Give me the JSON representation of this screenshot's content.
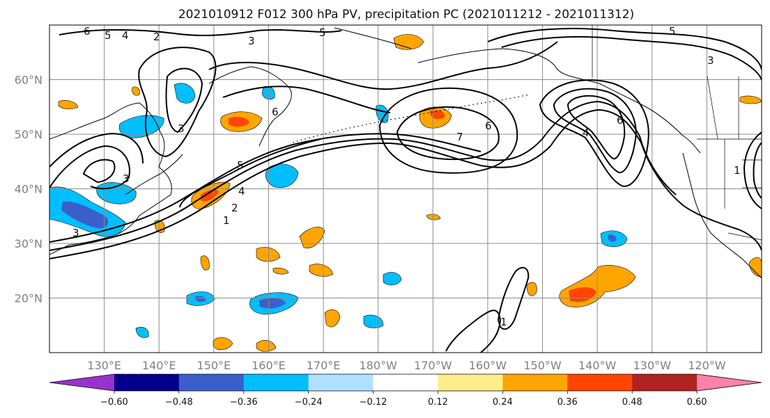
{
  "title": "2021010912 F012 300 hPa PV, precipitation PC (2021011212 - 2021011312)",
  "map": {
    "lon_range": [
      120,
      -110
    ],
    "lat_range": [
      10,
      70
    ],
    "lat_ticks": [
      {
        "lat": 20,
        "label": "20°N"
      },
      {
        "lat": 30,
        "label": "30°N"
      },
      {
        "lat": 40,
        "label": "40°N"
      },
      {
        "lat": 50,
        "label": "50°N"
      },
      {
        "lat": 60,
        "label": "60°N"
      }
    ],
    "lon_ticks": [
      {
        "lon": 130,
        "label": "130°E"
      },
      {
        "lon": 140,
        "label": "140°E"
      },
      {
        "lon": 150,
        "label": "150°E"
      },
      {
        "lon": 160,
        "label": "160°E"
      },
      {
        "lon": 170,
        "label": "170°E"
      },
      {
        "lon": 180,
        "label": "180°W"
      },
      {
        "lon": 190,
        "label": "170°W"
      },
      {
        "lon": 200,
        "label": "160°W"
      },
      {
        "lon": 210,
        "label": "150°W"
      },
      {
        "lon": 220,
        "label": "140°W"
      },
      {
        "lon": 230,
        "label": "130°W"
      },
      {
        "lon": 240,
        "label": "120°W"
      }
    ],
    "gridlines": true,
    "pv_contour_labels": [
      "1",
      "2",
      "3",
      "4",
      "5",
      "6",
      "7"
    ]
  },
  "colorbar": {
    "ticks": [
      "−0.60",
      "−0.48",
      "−0.36",
      "−0.24",
      "−0.12",
      "0.12",
      "0.24",
      "0.36",
      "0.48",
      "0.60"
    ],
    "colors": [
      "#9932cc",
      "#00008b",
      "#3a5fcd",
      "#00bfff",
      "#b0e2ff",
      "#ffffff",
      "#ffec8b",
      "#ffa500",
      "#ff4500",
      "#b22222",
      "#ff82ab"
    ],
    "extend": "both"
  }
}
